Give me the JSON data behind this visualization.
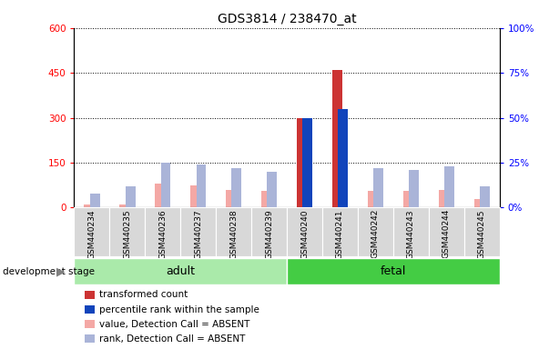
{
  "title": "GDS3814 / 238470_at",
  "samples": [
    "GSM440234",
    "GSM440235",
    "GSM440236",
    "GSM440237",
    "GSM440238",
    "GSM440239",
    "GSM440240",
    "GSM440241",
    "GSM440242",
    "GSM440243",
    "GSM440244",
    "GSM440245"
  ],
  "groups": [
    "adult",
    "adult",
    "adult",
    "adult",
    "adult",
    "adult",
    "fetal",
    "fetal",
    "fetal",
    "fetal",
    "fetal",
    "fetal"
  ],
  "transformed_count": [
    10,
    10,
    80,
    75,
    60,
    55,
    300,
    460,
    55,
    55,
    60,
    30
  ],
  "percentile_rank": [
    8,
    12,
    25,
    24,
    22,
    20,
    50,
    55,
    22,
    21,
    23,
    12
  ],
  "absent_flag": [
    true,
    true,
    true,
    true,
    true,
    true,
    false,
    false,
    true,
    true,
    true,
    true
  ],
  "left_ylim": [
    0,
    600
  ],
  "right_ylim": [
    0,
    100
  ],
  "left_yticks": [
    0,
    150,
    300,
    450,
    600
  ],
  "right_yticks": [
    0,
    25,
    50,
    75,
    100
  ],
  "bar_color_present_count": "#cc3333",
  "bar_color_present_rank": "#1144bb",
  "bar_color_absent_count": "#f4a8a5",
  "bar_color_absent_rank": "#aab4d8",
  "group_adult_color": "#aaeaaa",
  "group_fetal_color": "#44cc44",
  "background_color": "#ffffff",
  "title_fontsize": 10,
  "tick_fontsize": 7.5,
  "bar_width": 0.28
}
